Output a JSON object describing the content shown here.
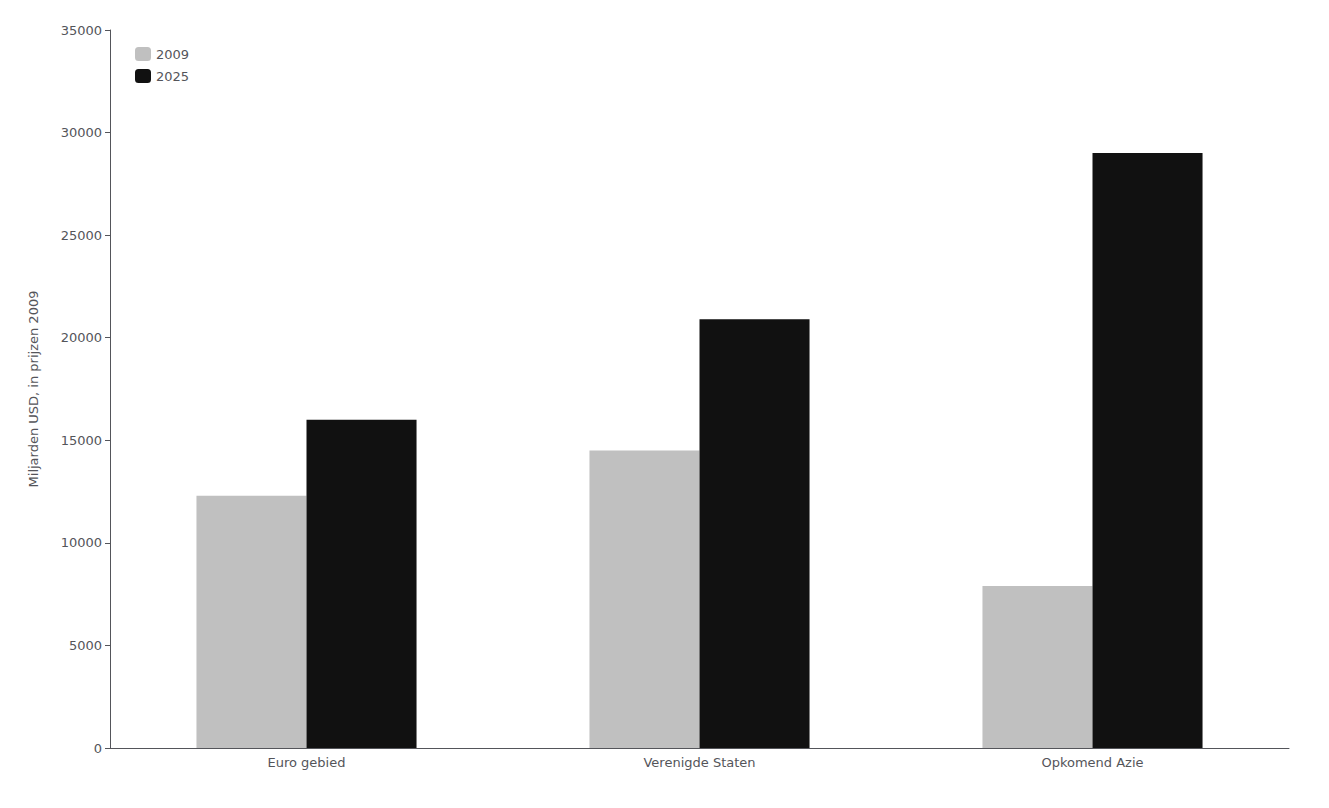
{
  "chart_data": {
    "type": "bar",
    "categories": [
      "Euro gebied",
      "Verenigde Staten",
      "Opkomend Azie"
    ],
    "series": [
      {
        "name": "2009",
        "color": "#c0c0c0",
        "values": [
          12300,
          14500,
          7900
        ]
      },
      {
        "name": "2025",
        "color": "#111111",
        "values": [
          16000,
          20900,
          29000
        ]
      }
    ],
    "ylabel": "Miljarden USD, in prijzen 2009",
    "ylim": [
      0,
      35000
    ],
    "yticks": [
      0,
      5000,
      10000,
      15000,
      20000,
      25000,
      30000,
      35000
    ],
    "grid": false,
    "legend": "upper left"
  }
}
